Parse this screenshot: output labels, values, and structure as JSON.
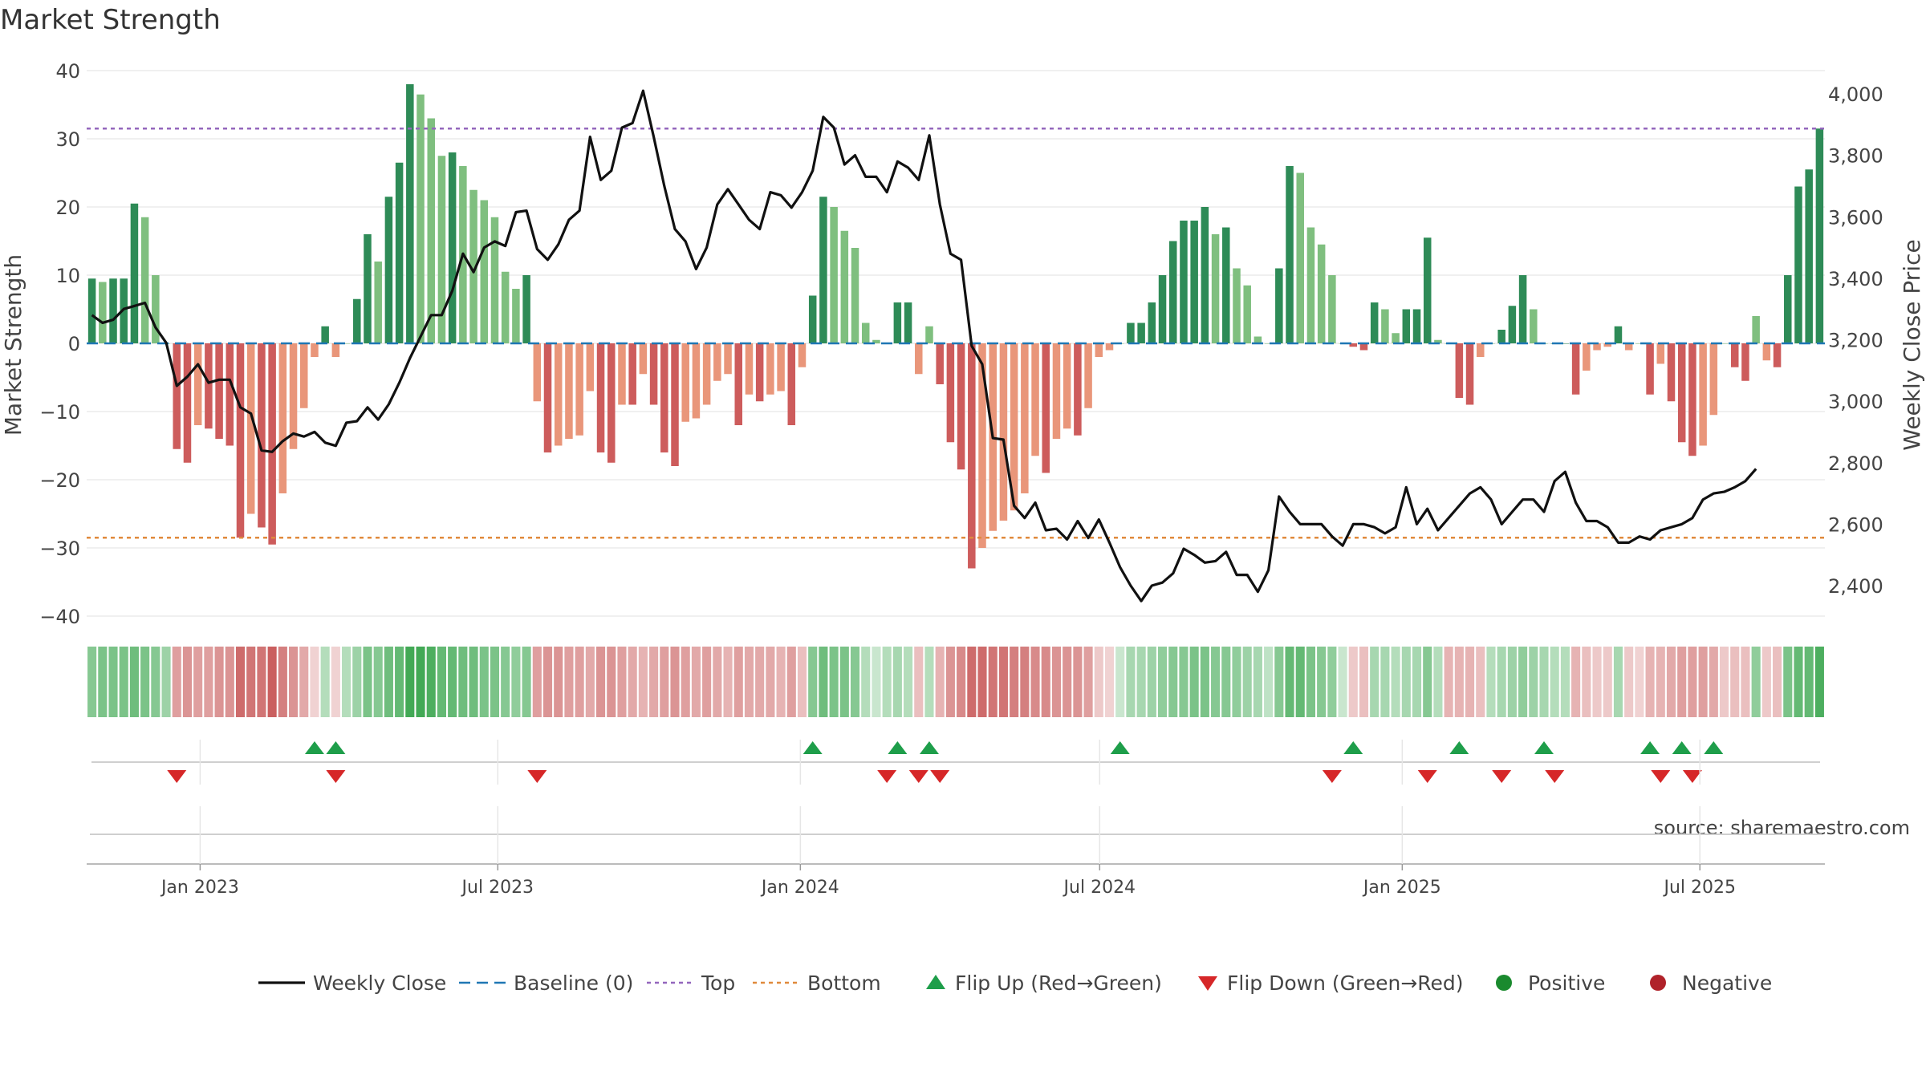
{
  "chart_data": {
    "type": "bar",
    "title": "Market Strength",
    "ylabel": "Market Strength",
    "y2label": "Weekly Close Price",
    "ylim": [
      -40,
      40
    ],
    "y2lim": [
      2400,
      4000
    ],
    "yticks": [
      -40,
      -30,
      -20,
      -10,
      0,
      10,
      20,
      30,
      40
    ],
    "yticklabels": [
      "−40",
      "−30",
      "−20",
      "−10",
      "0",
      "10",
      "20",
      "30",
      "40"
    ],
    "y2ticks": [
      2400,
      2600,
      2800,
      3000,
      3200,
      3400,
      3600,
      3800,
      4000
    ],
    "y2ticklabels": [
      "2,400",
      "2,600",
      "2,800",
      "3,000",
      "3,200",
      "3,400",
      "3,600",
      "3,800",
      "4,000"
    ],
    "x_start": "2022-10-24",
    "x_end": "2025-09-15",
    "xticks": [
      "2023-01-01",
      "2023-07-01",
      "2024-01-01",
      "2024-07-01",
      "2025-01-01",
      "2025-07-01"
    ],
    "xticklabels": [
      "Jan 2023",
      "Jul 2023",
      "Jan 2024",
      "Jul 2024",
      "Jan 2025",
      "Jul 2025"
    ],
    "top_line": 31.5,
    "bottom_line": -28.5,
    "grid": true,
    "legend_position": "bottom",
    "colors": {
      "positive_strong": "#2e8b57",
      "positive_weak": "#7fbf7f",
      "negative_strong": "#cd5c5c",
      "negative_weak": "#e9967a",
      "baseline": "#1f77b4",
      "top": "#9467bd",
      "bottom": "#e08a3c",
      "flip_up": "#1e9e4a",
      "flip_down": "#d62728",
      "close": "#111111"
    },
    "strength": [
      9.5,
      9,
      9.5,
      9.5,
      20.5,
      18.5,
      10,
      0,
      -15.5,
      -17.5,
      -12,
      -12.5,
      -14,
      -15,
      -28.5,
      -25,
      -27,
      -29.5,
      -22,
      -15.5,
      -9.5,
      -2,
      2.5,
      -2,
      0,
      6.5,
      16,
      12,
      21.5,
      26.5,
      38,
      36.5,
      33,
      27.5,
      28,
      26,
      22.5,
      21,
      18.5,
      10.5,
      8,
      10,
      -8.5,
      -16,
      -15,
      -14,
      -13.5,
      -7,
      -16,
      -17.5,
      -9,
      -9,
      -4.5,
      -9,
      -16,
      -18,
      -11.5,
      -11,
      -9,
      -5.5,
      -4.5,
      -12,
      -7.5,
      -8.5,
      -7.5,
      -7,
      -12,
      -3.5,
      7,
      21.5,
      20,
      16.5,
      14,
      3,
      0.5,
      0,
      6,
      6,
      -4.5,
      2.5,
      -6,
      -14.5,
      -18.5,
      -33,
      -30,
      -27.5,
      -26,
      -24.5,
      -22,
      -16.5,
      -19,
      -14,
      -12.5,
      -13.5,
      -9.5,
      -2,
      -1,
      0,
      3,
      3,
      6,
      10,
      15,
      18,
      18,
      20,
      16,
      17,
      11,
      8.5,
      1,
      0,
      11,
      26,
      25,
      17,
      14.5,
      10,
      0,
      -0.5,
      -1,
      6,
      5,
      1.5,
      5,
      5,
      15.5,
      0.5,
      0,
      -8,
      -9,
      -2,
      0,
      2,
      5.5,
      10,
      5,
      0,
      0,
      0,
      -7.5,
      -4,
      -1,
      -0.5,
      2.5,
      -1,
      0,
      -7.5,
      -3,
      -8.5,
      -14.5,
      -16.5,
      -15,
      -10.5,
      0,
      -3.5,
      -5.5,
      4,
      -2.5,
      -3.5,
      10,
      23,
      25.5,
      31.5
    ],
    "close": [
      3280,
      3255,
      3265,
      3300,
      3310,
      3320,
      3240,
      3190,
      3050,
      3080,
      3120,
      3060,
      3070,
      3070,
      2980,
      2960,
      2840,
      2835,
      2870,
      2895,
      2885,
      2900,
      2865,
      2855,
      2930,
      2935,
      2980,
      2940,
      2990,
      3060,
      3140,
      3210,
      3280,
      3280,
      3360,
      3480,
      3420,
      3500,
      3520,
      3505,
      3615,
      3620,
      3495,
      3460,
      3510,
      3590,
      3620,
      3860,
      3720,
      3750,
      3890,
      3905,
      4010,
      3860,
      3700,
      3560,
      3520,
      3430,
      3500,
      3640,
      3690,
      3640,
      3590,
      3560,
      3680,
      3670,
      3630,
      3680,
      3750,
      3925,
      3890,
      3770,
      3800,
      3730,
      3730,
      3680,
      3780,
      3760,
      3720,
      3865,
      3640,
      3480,
      3460,
      3180,
      3120,
      2880,
      2875,
      2660,
      2620,
      2670,
      2580,
      2585,
      2550,
      2610,
      2555,
      2615,
      2540,
      2460,
      2400,
      2350,
      2400,
      2410,
      2440,
      2520,
      2500,
      2475,
      2480,
      2510,
      2435,
      2435,
      2380,
      2450,
      2690,
      2640,
      2600,
      2600,
      2600,
      2560,
      2530,
      2600,
      2600,
      2590,
      2570,
      2590,
      2720,
      2600,
      2650,
      2580,
      2620,
      2660,
      2700,
      2720,
      2680,
      2600,
      2640,
      2680,
      2680,
      2640,
      2740,
      2770,
      2670,
      2610,
      2610,
      2590,
      2540,
      2540,
      2560,
      2550,
      2580,
      2590,
      2600,
      2620,
      2680,
      2700,
      2705,
      2720,
      2740,
      2780
    ],
    "regime_strength": [
      40,
      45,
      45,
      45,
      50,
      45,
      40,
      30,
      -35,
      -40,
      -35,
      -35,
      -40,
      -40,
      -60,
      -55,
      -55,
      -65,
      -50,
      -40,
      -30,
      -10,
      20,
      -10,
      20,
      30,
      45,
      40,
      50,
      55,
      70,
      70,
      65,
      55,
      55,
      50,
      50,
      45,
      45,
      40,
      35,
      40,
      -35,
      -40,
      -40,
      -35,
      -35,
      -30,
      -40,
      -40,
      -35,
      -30,
      -25,
      -30,
      -35,
      -40,
      -35,
      -30,
      -35,
      -30,
      -25,
      -35,
      -30,
      -30,
      -30,
      -25,
      -35,
      -20,
      40,
      50,
      45,
      45,
      40,
      20,
      10,
      20,
      25,
      20,
      -20,
      20,
      -25,
      -40,
      -45,
      -60,
      -60,
      -55,
      -55,
      -50,
      -50,
      -45,
      -45,
      -40,
      -40,
      -40,
      -35,
      -15,
      -10,
      10,
      25,
      25,
      30,
      35,
      40,
      40,
      45,
      45,
      40,
      40,
      35,
      30,
      25,
      15,
      40,
      55,
      55,
      45,
      40,
      35,
      10,
      -15,
      -20,
      25,
      25,
      20,
      25,
      25,
      40,
      20,
      -25,
      -25,
      -25,
      -20,
      20,
      25,
      30,
      35,
      30,
      25,
      20,
      20,
      -25,
      -20,
      -15,
      -15,
      25,
      -15,
      -10,
      -25,
      -25,
      -30,
      -35,
      -35,
      -35,
      -30,
      -15,
      -20,
      -20,
      35,
      -15,
      -20,
      45,
      55,
      55,
      65
    ],
    "flip_up_weeks": [
      21,
      23,
      68,
      76,
      79,
      97,
      119,
      129,
      137,
      147,
      150,
      153
    ],
    "flip_down_weeks": [
      8,
      23,
      42,
      75,
      78,
      80,
      117,
      126,
      133,
      138,
      148,
      151
    ],
    "source_text": "source: sharemaestro.com",
    "legend": [
      {
        "label": "Weekly Close",
        "kind": "line"
      },
      {
        "label": "Baseline (0)",
        "kind": "dash"
      },
      {
        "label": "Top",
        "kind": "dot-purple"
      },
      {
        "label": "Bottom",
        "kind": "dot-orange"
      },
      {
        "label": "Flip Up (Red→Green)",
        "kind": "tri-up"
      },
      {
        "label": "Flip Down (Green→Red)",
        "kind": "tri-down"
      },
      {
        "label": "Positive",
        "kind": "circle-green"
      },
      {
        "label": "Negative",
        "kind": "circle-red"
      }
    ]
  }
}
